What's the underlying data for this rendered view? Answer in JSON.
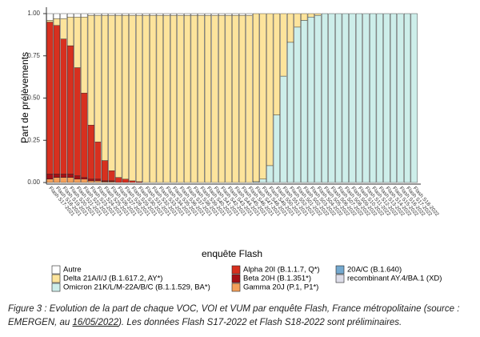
{
  "chart_data": {
    "type": "stacked_bar",
    "y_label": "Part de prélèvements",
    "x_label": "enquête Flash",
    "categories": [
      "Flash S17-2021",
      "Flash S18-2021",
      "Flash S19-2021",
      "Flash S20-2021",
      "Flash S21-2021",
      "Flash S22-2021",
      "Flash S23-2021",
      "Flash S24-2021",
      "Flash S25-2021",
      "Flash S26-2021",
      "Flash S27-2021",
      "Flash S28-2021",
      "Flash S29-2021",
      "Flash S30-2021",
      "Flash S31-2021",
      "Flash S32-2021",
      "Flash S33-2021",
      "Flash S34-2021",
      "Flash S35-2021",
      "Flash S36-2021",
      "Flash S37-2021",
      "Flash S38-2021",
      "Flash S39-2021",
      "Flash S40-2021",
      "Flash S41-2021",
      "Flash S42-2021",
      "Flash S43-2021",
      "Flash S44-2021",
      "Flash S45-2021",
      "Flash S46-2021",
      "Flash S47-2021",
      "Flash S48-2021",
      "Flash S49-2021",
      "Flash S50-2021",
      "Flash S51-2021",
      "Flash S52-2021",
      "Flash S01-2022",
      "Flash S02-2022",
      "Flash S03-2022",
      "Flash S04-2022",
      "Flash S05-2022",
      "Flash S06-2022",
      "Flash S07-2022",
      "Flash S08-2022",
      "Flash S09-2022",
      "Flash S10-2022",
      "Flash S11-2022",
      "Flash S12-2022",
      "Flash S13-2022",
      "Flash S14-2022",
      "Flash S15-2022",
      "Flash S16-2022",
      "Flash S17-2022",
      "Flash S18-2022"
    ],
    "series": [
      {
        "name": "Autre",
        "color": "#ffffff",
        "values": [
          0.04,
          0.03,
          0.03,
          0.02,
          0.02,
          0.02,
          0.01,
          0.01,
          0.01,
          0.01,
          0.01,
          0.01,
          0.01,
          0.01,
          0.01,
          0.01,
          0.01,
          0.01,
          0.01,
          0.01,
          0.01,
          0.01,
          0.01,
          0.01,
          0.01,
          0.01,
          0.01,
          0.01,
          0.01,
          0.01,
          0,
          0,
          0,
          0,
          0,
          0,
          0,
          0,
          0,
          0,
          0,
          0,
          0,
          0,
          0,
          0,
          0,
          0,
          0,
          0,
          0,
          0,
          0,
          0
        ]
      },
      {
        "name": "Delta 21A/I/J (B.1.617.2, AY*)",
        "color": "#fde49c",
        "values": [
          0.01,
          0.04,
          0.12,
          0.17,
          0.3,
          0.45,
          0.65,
          0.75,
          0.86,
          0.92,
          0.96,
          0.97,
          0.98,
          0.985,
          0.99,
          0.99,
          0.99,
          0.99,
          0.99,
          0.99,
          0.99,
          0.99,
          0.99,
          0.99,
          0.99,
          0.99,
          0.99,
          0.99,
          0.99,
          0.99,
          0.995,
          0.98,
          0.9,
          0.6,
          0.37,
          0.17,
          0.08,
          0.04,
          0.02,
          0.01,
          0,
          0,
          0,
          0,
          0,
          0,
          0,
          0,
          0,
          0,
          0,
          0,
          0,
          0
        ]
      },
      {
        "name": "Omicron 21K/L/M-22A/B/C (B.1.1.529, BA*)",
        "color": "#cdeeea",
        "values": [
          0,
          0,
          0,
          0,
          0,
          0,
          0,
          0,
          0,
          0,
          0,
          0,
          0,
          0,
          0,
          0,
          0,
          0,
          0,
          0,
          0,
          0,
          0,
          0,
          0,
          0,
          0,
          0,
          0,
          0,
          0.005,
          0.02,
          0.1,
          0.4,
          0.63,
          0.83,
          0.92,
          0.96,
          0.98,
          0.99,
          1,
          1,
          1,
          1,
          1,
          1,
          1,
          1,
          1,
          1,
          1,
          1,
          1,
          1
        ]
      },
      {
        "name": "Alpha 20I (B.1.1.7, Q*)",
        "color": "#d7301f",
        "values": [
          0.9,
          0.88,
          0.8,
          0.76,
          0.64,
          0.5,
          0.32,
          0.22,
          0.12,
          0.06,
          0.03,
          0.02,
          0.01,
          0.005,
          0,
          0,
          0,
          0,
          0,
          0,
          0,
          0,
          0,
          0,
          0,
          0,
          0,
          0,
          0,
          0,
          0,
          0,
          0,
          0,
          0,
          0,
          0,
          0,
          0,
          0,
          0,
          0,
          0,
          0,
          0,
          0,
          0,
          0,
          0,
          0,
          0,
          0,
          0,
          0
        ]
      },
      {
        "name": "Beta 20H (B.1.351*)",
        "color": "#a50f15",
        "values": [
          0.03,
          0.02,
          0.02,
          0.02,
          0.02,
          0.01,
          0.01,
          0.01,
          0.005,
          0.005,
          0,
          0,
          0,
          0,
          0,
          0,
          0,
          0,
          0,
          0,
          0,
          0,
          0,
          0,
          0,
          0,
          0,
          0,
          0,
          0,
          0,
          0,
          0,
          0,
          0,
          0,
          0,
          0,
          0,
          0,
          0,
          0,
          0,
          0,
          0,
          0,
          0,
          0,
          0,
          0,
          0,
          0,
          0,
          0
        ]
      },
      {
        "name": "Gamma 20J (P.1, P1*)",
        "color": "#f4a05a",
        "values": [
          0.02,
          0.03,
          0.03,
          0.03,
          0.02,
          0.02,
          0.01,
          0.01,
          0.005,
          0.005,
          0,
          0,
          0,
          0,
          0,
          0,
          0,
          0,
          0,
          0,
          0,
          0,
          0,
          0,
          0,
          0,
          0,
          0,
          0,
          0,
          0,
          0,
          0,
          0,
          0,
          0,
          0,
          0,
          0,
          0,
          0,
          0,
          0,
          0,
          0,
          0,
          0,
          0,
          0,
          0,
          0,
          0,
          0,
          0
        ]
      },
      {
        "name": "20A/C (B.1.640)",
        "color": "#74a9cf",
        "values": [
          0,
          0,
          0,
          0,
          0,
          0,
          0,
          0,
          0,
          0,
          0,
          0,
          0,
          0,
          0,
          0,
          0,
          0,
          0,
          0,
          0,
          0,
          0,
          0,
          0,
          0,
          0,
          0,
          0,
          0,
          0,
          0,
          0,
          0,
          0,
          0,
          0,
          0,
          0,
          0,
          0,
          0,
          0,
          0,
          0,
          0,
          0,
          0,
          0,
          0,
          0,
          0,
          0,
          0
        ]
      },
      {
        "name": "recombinant AY.4/BA.1 (XD)",
        "color": "#dcdce8",
        "values": [
          0,
          0,
          0,
          0,
          0,
          0,
          0,
          0,
          0,
          0,
          0,
          0,
          0,
          0,
          0,
          0,
          0,
          0,
          0,
          0,
          0,
          0,
          0,
          0,
          0,
          0,
          0,
          0,
          0,
          0,
          0,
          0,
          0,
          0,
          0,
          0,
          0,
          0,
          0,
          0,
          0,
          0,
          0,
          0,
          0,
          0,
          0,
          0,
          0,
          0,
          0,
          0,
          0,
          0
        ]
      }
    ],
    "ylim": [
      0,
      1
    ],
    "yticks": [
      {
        "value": 0,
        "label": "0.00"
      },
      {
        "value": 0.25,
        "label": "0.25"
      },
      {
        "value": 0.5,
        "label": "0.50"
      },
      {
        "value": 0.75,
        "label": "0.75"
      },
      {
        "value": 1,
        "label": "1.00"
      }
    ],
    "caption_before": "Figure 3 : Evolution de la part de chaque VOC, VOI et VUM par enquête Flash, France métropolitaine (source : EMERGEN, au ",
    "caption_date": "16/05/2022",
    "caption_after": "). Les données Flash S17-2022 et Flash S18-2022 sont préliminaires."
  }
}
